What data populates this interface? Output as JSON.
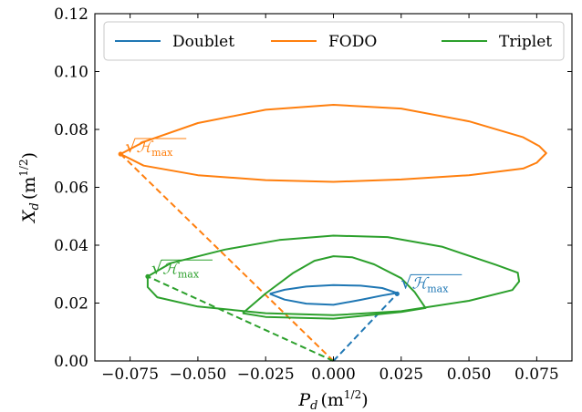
{
  "chart_data": {
    "type": "line",
    "xlabel": "P_d (m^1/2)",
    "xlabel_parts": {
      "sym": "P",
      "sub": "d",
      "unit_open": "(m",
      "unit_sup": "1/2",
      "unit_close": ")"
    },
    "ylabel": "X_d (m^1/2)",
    "ylabel_parts": {
      "sym": "X",
      "sub": "d",
      "unit_open": "(m",
      "unit_sup": "1/2",
      "unit_close": ")"
    },
    "xlim": [
      -0.088,
      0.088
    ],
    "ylim": [
      0.0,
      0.12
    ],
    "xticks": [
      -0.075,
      -0.05,
      -0.025,
      0.0,
      0.025,
      0.05,
      0.075
    ],
    "xtick_labels": [
      "−0.075",
      "−0.050",
      "−0.025",
      "0.000",
      "0.025",
      "0.050",
      "0.075"
    ],
    "yticks": [
      0.0,
      0.02,
      0.04,
      0.06,
      0.08,
      0.1,
      0.12
    ],
    "ytick_labels": [
      "0.00",
      "0.02",
      "0.04",
      "0.06",
      "0.08",
      "0.10",
      "0.12"
    ],
    "grid": false,
    "legend_position": "top",
    "series": [
      {
        "name": "Doublet",
        "color": "#1f77b4",
        "points": [
          [
            -0.0235,
            0.0232
          ],
          [
            -0.018,
            0.0246
          ],
          [
            -0.01,
            0.0257
          ],
          [
            0.0,
            0.0262
          ],
          [
            0.01,
            0.026
          ],
          [
            0.018,
            0.0252
          ],
          [
            0.0235,
            0.0235
          ],
          [
            0.018,
            0.0226
          ],
          [
            0.01,
            0.0211
          ],
          [
            0.0,
            0.0194
          ],
          [
            -0.01,
            0.0198
          ],
          [
            -0.018,
            0.0212
          ],
          [
            -0.0235,
            0.0232
          ]
        ],
        "peak": [
          0.0235,
          0.0232
        ],
        "annotation": {
          "radical": "√",
          "symbol": "ℋ",
          "sub": "max"
        }
      },
      {
        "name": "FODO",
        "color": "#ff7f0e",
        "points": [
          [
            -0.0785,
            0.0715
          ],
          [
            -0.07,
            0.0757
          ],
          [
            -0.05,
            0.0822
          ],
          [
            -0.025,
            0.0868
          ],
          [
            0.0,
            0.0885
          ],
          [
            0.025,
            0.0872
          ],
          [
            0.05,
            0.0828
          ],
          [
            0.07,
            0.0773
          ],
          [
            0.076,
            0.0742
          ],
          [
            0.0785,
            0.0718
          ],
          [
            0.075,
            0.0685
          ],
          [
            0.07,
            0.0665
          ],
          [
            0.05,
            0.0642
          ],
          [
            0.025,
            0.0627
          ],
          [
            0.0,
            0.0619
          ],
          [
            -0.025,
            0.0625
          ],
          [
            -0.05,
            0.0642
          ],
          [
            -0.07,
            0.0675
          ],
          [
            -0.0785,
            0.0715
          ]
        ],
        "peak": [
          -0.0785,
          0.0715
        ],
        "annotation": {
          "radical": "√",
          "symbol": "ℋ",
          "sub": "max"
        }
      },
      {
        "name": "Triplet",
        "color": "#2ca02c",
        "points": [
          [
            -0.0685,
            0.0292
          ],
          [
            -0.06,
            0.0338
          ],
          [
            -0.04,
            0.0385
          ],
          [
            -0.02,
            0.0418
          ],
          [
            0.0,
            0.0433
          ],
          [
            0.02,
            0.0428
          ],
          [
            0.04,
            0.0395
          ],
          [
            0.06,
            0.0332
          ],
          [
            0.068,
            0.0305
          ],
          [
            0.0685,
            0.0275
          ],
          [
            0.066,
            0.0245
          ],
          [
            0.05,
            0.0208
          ],
          [
            0.025,
            0.0172
          ],
          [
            0.0,
            0.0158
          ],
          [
            -0.025,
            0.0165
          ],
          [
            -0.05,
            0.0188
          ],
          [
            -0.065,
            0.022
          ],
          [
            -0.0685,
            0.0255
          ],
          [
            -0.0685,
            0.0292
          ]
        ],
        "points_inner": [
          [
            -0.0335,
            0.0165
          ],
          [
            -0.025,
            0.0233
          ],
          [
            -0.015,
            0.0303
          ],
          [
            -0.007,
            0.0346
          ],
          [
            0.0,
            0.0362
          ],
          [
            0.007,
            0.0358
          ],
          [
            0.015,
            0.0334
          ],
          [
            0.025,
            0.0286
          ],
          [
            0.03,
            0.0238
          ],
          [
            0.034,
            0.0183
          ],
          [
            0.025,
            0.0169
          ],
          [
            0.0,
            0.0146
          ],
          [
            -0.025,
            0.0152
          ],
          [
            -0.0335,
            0.0165
          ]
        ],
        "peak": [
          -0.0685,
          0.0292
        ],
        "annotation": {
          "radical": "√",
          "symbol": "ℋ",
          "sub": "max"
        }
      }
    ]
  }
}
